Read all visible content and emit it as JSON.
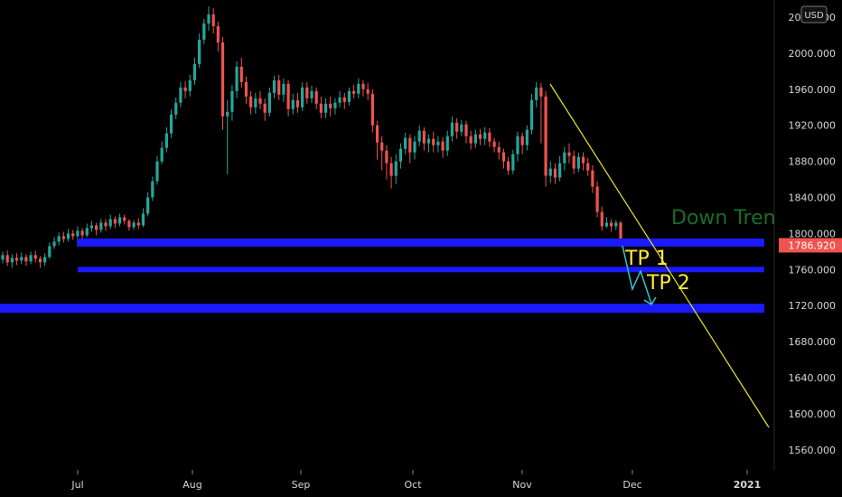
{
  "chart_data": {
    "type": "candlestick",
    "currency": "USD",
    "ylim": [
      1535,
      2055
    ],
    "y_ticks": [
      "1560.000",
      "1600.000",
      "1640.000",
      "1680.000",
      "1720.000",
      "1760.000",
      "1800.000",
      "1840.000",
      "1880.000",
      "1920.000",
      "1960.000",
      "2000.000",
      "2040.000"
    ],
    "x_labels": [
      "Jul",
      "Aug",
      "Sep",
      "Oct",
      "Nov",
      "Dec",
      "2021"
    ],
    "last_price": "1786.920",
    "colors": {
      "up": "#26a69a",
      "down": "#ef5350",
      "level": "#1a1aff",
      "trend": "#e8e81e",
      "arrow": "#35c4d6",
      "tp": "#ffeb3b",
      "downtrend": "#1b6b2b",
      "last_price_bg": "#ef5350"
    },
    "candles": [
      [
        1771,
        1776,
        1780,
        1767
      ],
      [
        1776,
        1768,
        1781,
        1764
      ],
      [
        1768,
        1773,
        1777,
        1762
      ],
      [
        1773,
        1770,
        1778,
        1765
      ],
      [
        1770,
        1774,
        1779,
        1766
      ],
      [
        1774,
        1769,
        1777,
        1764
      ],
      [
        1769,
        1776,
        1780,
        1766
      ],
      [
        1776,
        1772,
        1781,
        1768
      ],
      [
        1772,
        1768,
        1775,
        1762
      ],
      [
        1768,
        1774,
        1778,
        1764
      ],
      [
        1774,
        1786,
        1790,
        1772
      ],
      [
        1786,
        1791,
        1796,
        1783
      ],
      [
        1791,
        1797,
        1801,
        1787
      ],
      [
        1797,
        1794,
        1802,
        1790
      ],
      [
        1794,
        1800,
        1805,
        1791
      ],
      [
        1800,
        1797,
        1804,
        1793
      ],
      [
        1797,
        1803,
        1808,
        1795
      ],
      [
        1803,
        1798,
        1806,
        1793
      ],
      [
        1798,
        1806,
        1811,
        1796
      ],
      [
        1806,
        1809,
        1814,
        1802
      ],
      [
        1809,
        1804,
        1812,
        1798
      ],
      [
        1804,
        1812,
        1816,
        1801
      ],
      [
        1812,
        1808,
        1816,
        1803
      ],
      [
        1808,
        1816,
        1821,
        1805
      ],
      [
        1816,
        1811,
        1819,
        1806
      ],
      [
        1811,
        1818,
        1822,
        1808
      ],
      [
        1818,
        1814,
        1821,
        1810
      ],
      [
        1814,
        1807,
        1816,
        1803
      ],
      [
        1807,
        1812,
        1815,
        1804
      ],
      [
        1812,
        1809,
        1817,
        1805
      ],
      [
        1809,
        1822,
        1828,
        1807
      ],
      [
        1822,
        1840,
        1846,
        1819
      ],
      [
        1840,
        1858,
        1863,
        1836
      ],
      [
        1858,
        1880,
        1886,
        1854
      ],
      [
        1880,
        1895,
        1902,
        1877
      ],
      [
        1895,
        1911,
        1918,
        1890
      ],
      [
        1911,
        1932,
        1938,
        1906
      ],
      [
        1932,
        1945,
        1951,
        1927
      ],
      [
        1945,
        1962,
        1968,
        1940
      ],
      [
        1962,
        1958,
        1969,
        1950
      ],
      [
        1958,
        1970,
        1976,
        1952
      ],
      [
        1970,
        1988,
        1995,
        1965
      ],
      [
        1988,
        2015,
        2022,
        1984
      ],
      [
        2015,
        2033,
        2038,
        2010
      ],
      [
        2033,
        2043,
        2052,
        2025
      ],
      [
        2043,
        2030,
        2050,
        2022
      ],
      [
        2030,
        2012,
        2035,
        2002
      ],
      [
        2012,
        1930,
        2018,
        1915
      ],
      [
        1930,
        1935,
        1948,
        1866
      ],
      [
        1935,
        1958,
        1965,
        1925
      ],
      [
        1958,
        1985,
        1991,
        1950
      ],
      [
        1985,
        1968,
        1995,
        1962
      ],
      [
        1968,
        1952,
        1974,
        1944
      ],
      [
        1952,
        1940,
        1958,
        1932
      ],
      [
        1940,
        1950,
        1956,
        1933
      ],
      [
        1950,
        1944,
        1958,
        1938
      ],
      [
        1944,
        1934,
        1950,
        1925
      ],
      [
        1934,
        1956,
        1962,
        1930
      ],
      [
        1956,
        1970,
        1975,
        1950
      ],
      [
        1970,
        1954,
        1976,
        1948
      ],
      [
        1954,
        1966,
        1972,
        1946
      ],
      [
        1966,
        1938,
        1970,
        1930
      ],
      [
        1938,
        1948,
        1955,
        1932
      ],
      [
        1948,
        1940,
        1956,
        1934
      ],
      [
        1940,
        1962,
        1968,
        1936
      ],
      [
        1962,
        1950,
        1968,
        1944
      ],
      [
        1950,
        1958,
        1964,
        1945
      ],
      [
        1958,
        1944,
        1962,
        1938
      ],
      [
        1944,
        1934,
        1952,
        1928
      ],
      [
        1934,
        1944,
        1950,
        1928
      ],
      [
        1944,
        1939,
        1952,
        1930
      ],
      [
        1939,
        1945,
        1950,
        1932
      ],
      [
        1945,
        1951,
        1958,
        1940
      ],
      [
        1951,
        1946,
        1956,
        1938
      ],
      [
        1946,
        1958,
        1962,
        1942
      ],
      [
        1958,
        1955,
        1965,
        1950
      ],
      [
        1955,
        1966,
        1972,
        1950
      ],
      [
        1966,
        1960,
        1970,
        1952
      ],
      [
        1960,
        1955,
        1967,
        1948
      ],
      [
        1955,
        1920,
        1960,
        1912
      ],
      [
        1920,
        1901,
        1925,
        1882
      ],
      [
        1901,
        1892,
        1908,
        1870
      ],
      [
        1892,
        1878,
        1898,
        1860
      ],
      [
        1878,
        1864,
        1885,
        1850
      ],
      [
        1864,
        1880,
        1888,
        1855
      ],
      [
        1880,
        1894,
        1900,
        1872
      ],
      [
        1894,
        1906,
        1912,
        1888
      ],
      [
        1906,
        1890,
        1910,
        1878
      ],
      [
        1890,
        1902,
        1908,
        1882
      ],
      [
        1902,
        1914,
        1920,
        1897
      ],
      [
        1914,
        1900,
        1918,
        1892
      ],
      [
        1900,
        1905,
        1910,
        1890
      ],
      [
        1905,
        1898,
        1913,
        1890
      ],
      [
        1898,
        1902,
        1908,
        1890
      ],
      [
        1902,
        1892,
        1907,
        1884
      ],
      [
        1892,
        1908,
        1914,
        1886
      ],
      [
        1908,
        1923,
        1930,
        1902
      ],
      [
        1923,
        1913,
        1928,
        1905
      ],
      [
        1913,
        1921,
        1926,
        1908
      ],
      [
        1921,
        1908,
        1925,
        1900
      ],
      [
        1908,
        1900,
        1914,
        1893
      ],
      [
        1900,
        1910,
        1915,
        1895
      ],
      [
        1910,
        1905,
        1916,
        1898
      ],
      [
        1905,
        1912,
        1918,
        1898
      ],
      [
        1912,
        1902,
        1917,
        1896
      ],
      [
        1902,
        1896,
        1906,
        1890
      ],
      [
        1896,
        1890,
        1902,
        1882
      ],
      [
        1890,
        1880,
        1894,
        1872
      ],
      [
        1880,
        1870,
        1885,
        1865
      ],
      [
        1870,
        1888,
        1893,
        1866
      ],
      [
        1888,
        1908,
        1913,
        1880
      ],
      [
        1908,
        1898,
        1912,
        1888
      ],
      [
        1898,
        1915,
        1920,
        1892
      ],
      [
        1915,
        1948,
        1955,
        1910
      ],
      [
        1948,
        1962,
        1968,
        1940
      ],
      [
        1962,
        1952,
        1967,
        1900
      ],
      [
        1952,
        1864,
        1958,
        1852
      ],
      [
        1864,
        1872,
        1880,
        1856
      ],
      [
        1872,
        1862,
        1878,
        1855
      ],
      [
        1862,
        1878,
        1886,
        1858
      ],
      [
        1878,
        1890,
        1896,
        1870
      ],
      [
        1890,
        1886,
        1900,
        1878
      ],
      [
        1886,
        1872,
        1892,
        1866
      ],
      [
        1872,
        1885,
        1890,
        1868
      ],
      [
        1885,
        1878,
        1890,
        1870
      ],
      [
        1878,
        1870,
        1884,
        1864
      ],
      [
        1870,
        1852,
        1876,
        1845
      ],
      [
        1852,
        1824,
        1858,
        1818
      ],
      [
        1824,
        1808,
        1830,
        1803
      ],
      [
        1808,
        1812,
        1818,
        1806
      ],
      [
        1812,
        1808,
        1816,
        1802
      ],
      [
        1808,
        1812,
        1815,
        1804
      ],
      [
        1812,
        1787,
        1814,
        1785
      ]
    ],
    "levels": [
      1790,
      1760,
      1717
    ],
    "trendline": {
      "start": [
        121,
        1967
      ],
      "end": [
        145,
        1584
      ]
    },
    "annotations": [
      "TP 1",
      "TP 2",
      "Down Tren"
    ]
  }
}
